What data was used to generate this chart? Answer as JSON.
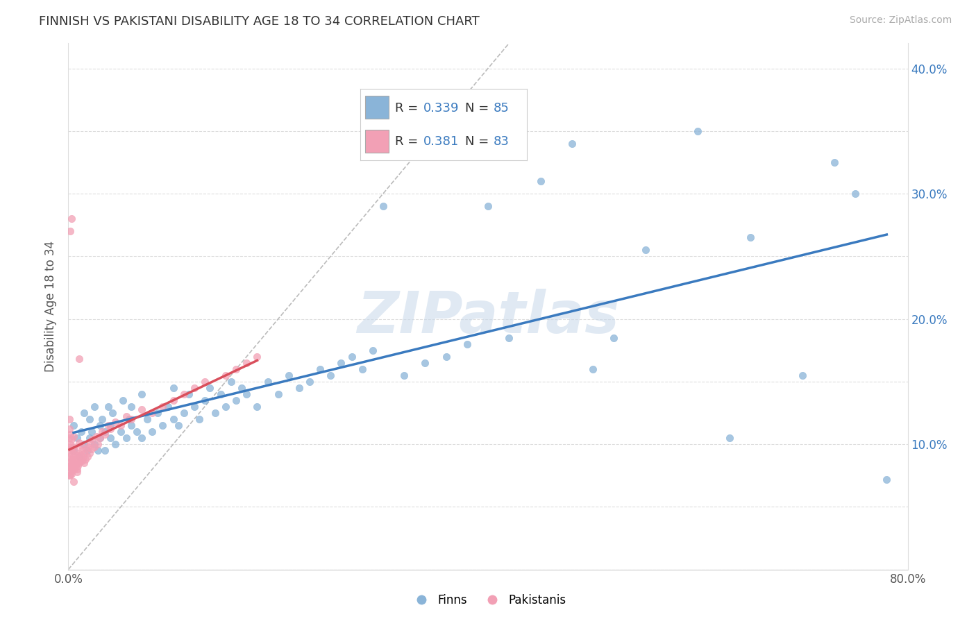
{
  "title": "FINNISH VS PAKISTANI DISABILITY AGE 18 TO 34 CORRELATION CHART",
  "source": "Source: ZipAtlas.com",
  "ylabel": "Disability Age 18 to 34",
  "xlim": [
    0.0,
    0.8
  ],
  "ylim": [
    0.0,
    0.42
  ],
  "xtick_vals": [
    0.0,
    0.1,
    0.2,
    0.3,
    0.4,
    0.5,
    0.6,
    0.7,
    0.8
  ],
  "xticklabels": [
    "0.0%",
    "",
    "",
    "",
    "",
    "",
    "",
    "",
    "80.0%"
  ],
  "ytick_vals": [
    0.0,
    0.05,
    0.1,
    0.15,
    0.2,
    0.25,
    0.3,
    0.35,
    0.4
  ],
  "yticklabels_right": [
    "",
    "",
    "10.0%",
    "",
    "20.0%",
    "",
    "30.0%",
    "",
    "40.0%"
  ],
  "r_finn": 0.339,
  "n_finn": 85,
  "r_pak": 0.381,
  "n_pak": 83,
  "finn_color": "#8ab4d8",
  "pak_color": "#f2a0b5",
  "trendline_finn_color": "#3a7abf",
  "trendline_pak_color": "#d94f5c",
  "watermark": "ZIPatlas",
  "legend_finn": "Finns",
  "legend_pak": "Pakistanis",
  "finns_x": [
    0.005,
    0.005,
    0.008,
    0.01,
    0.012,
    0.015,
    0.015,
    0.018,
    0.02,
    0.02,
    0.022,
    0.025,
    0.025,
    0.028,
    0.03,
    0.03,
    0.032,
    0.035,
    0.035,
    0.038,
    0.04,
    0.04,
    0.042,
    0.045,
    0.05,
    0.052,
    0.055,
    0.058,
    0.06,
    0.06,
    0.065,
    0.07,
    0.07,
    0.075,
    0.08,
    0.085,
    0.09,
    0.095,
    0.1,
    0.1,
    0.105,
    0.11,
    0.115,
    0.12,
    0.125,
    0.13,
    0.135,
    0.14,
    0.145,
    0.15,
    0.155,
    0.16,
    0.165,
    0.17,
    0.18,
    0.19,
    0.2,
    0.21,
    0.22,
    0.23,
    0.24,
    0.25,
    0.26,
    0.27,
    0.28,
    0.29,
    0.3,
    0.32,
    0.34,
    0.36,
    0.38,
    0.4,
    0.42,
    0.45,
    0.48,
    0.5,
    0.52,
    0.55,
    0.6,
    0.63,
    0.65,
    0.7,
    0.73,
    0.75,
    0.78
  ],
  "finns_y": [
    0.095,
    0.115,
    0.105,
    0.09,
    0.11,
    0.1,
    0.125,
    0.095,
    0.105,
    0.12,
    0.11,
    0.1,
    0.13,
    0.095,
    0.115,
    0.105,
    0.12,
    0.11,
    0.095,
    0.13,
    0.105,
    0.115,
    0.125,
    0.1,
    0.11,
    0.135,
    0.105,
    0.12,
    0.115,
    0.13,
    0.11,
    0.105,
    0.14,
    0.12,
    0.11,
    0.125,
    0.115,
    0.13,
    0.12,
    0.145,
    0.115,
    0.125,
    0.14,
    0.13,
    0.12,
    0.135,
    0.145,
    0.125,
    0.14,
    0.13,
    0.15,
    0.135,
    0.145,
    0.14,
    0.13,
    0.15,
    0.14,
    0.155,
    0.145,
    0.15,
    0.16,
    0.155,
    0.165,
    0.17,
    0.16,
    0.175,
    0.29,
    0.155,
    0.165,
    0.17,
    0.18,
    0.29,
    0.185,
    0.31,
    0.34,
    0.16,
    0.185,
    0.255,
    0.35,
    0.105,
    0.265,
    0.155,
    0.325,
    0.3,
    0.072
  ],
  "paks_x": [
    0.001,
    0.001,
    0.001,
    0.001,
    0.001,
    0.001,
    0.001,
    0.001,
    0.002,
    0.002,
    0.002,
    0.002,
    0.002,
    0.002,
    0.002,
    0.003,
    0.003,
    0.003,
    0.003,
    0.003,
    0.003,
    0.003,
    0.004,
    0.004,
    0.004,
    0.005,
    0.005,
    0.005,
    0.005,
    0.006,
    0.006,
    0.006,
    0.007,
    0.007,
    0.008,
    0.008,
    0.009,
    0.009,
    0.01,
    0.01,
    0.01,
    0.011,
    0.012,
    0.012,
    0.013,
    0.013,
    0.014,
    0.015,
    0.015,
    0.016,
    0.017,
    0.018,
    0.019,
    0.02,
    0.021,
    0.022,
    0.023,
    0.025,
    0.027,
    0.028,
    0.03,
    0.032,
    0.035,
    0.038,
    0.04,
    0.045,
    0.05,
    0.055,
    0.06,
    0.07,
    0.08,
    0.09,
    0.1,
    0.11,
    0.12,
    0.13,
    0.15,
    0.16,
    0.17,
    0.18,
    0.01,
    0.008,
    0.005
  ],
  "paks_y": [
    0.075,
    0.082,
    0.09,
    0.098,
    0.105,
    0.112,
    0.12,
    0.078,
    0.085,
    0.093,
    0.1,
    0.108,
    0.075,
    0.083,
    0.27,
    0.08,
    0.088,
    0.096,
    0.104,
    0.076,
    0.084,
    0.28,
    0.079,
    0.087,
    0.095,
    0.082,
    0.09,
    0.098,
    0.106,
    0.08,
    0.088,
    0.096,
    0.083,
    0.091,
    0.08,
    0.088,
    0.083,
    0.091,
    0.085,
    0.093,
    0.101,
    0.086,
    0.091,
    0.099,
    0.087,
    0.095,
    0.09,
    0.085,
    0.093,
    0.088,
    0.096,
    0.09,
    0.098,
    0.093,
    0.101,
    0.096,
    0.104,
    0.098,
    0.106,
    0.1,
    0.105,
    0.11,
    0.108,
    0.115,
    0.112,
    0.118,
    0.115,
    0.122,
    0.12,
    0.128,
    0.125,
    0.13,
    0.135,
    0.14,
    0.145,
    0.15,
    0.155,
    0.16,
    0.165,
    0.17,
    0.168,
    0.078,
    0.07
  ]
}
